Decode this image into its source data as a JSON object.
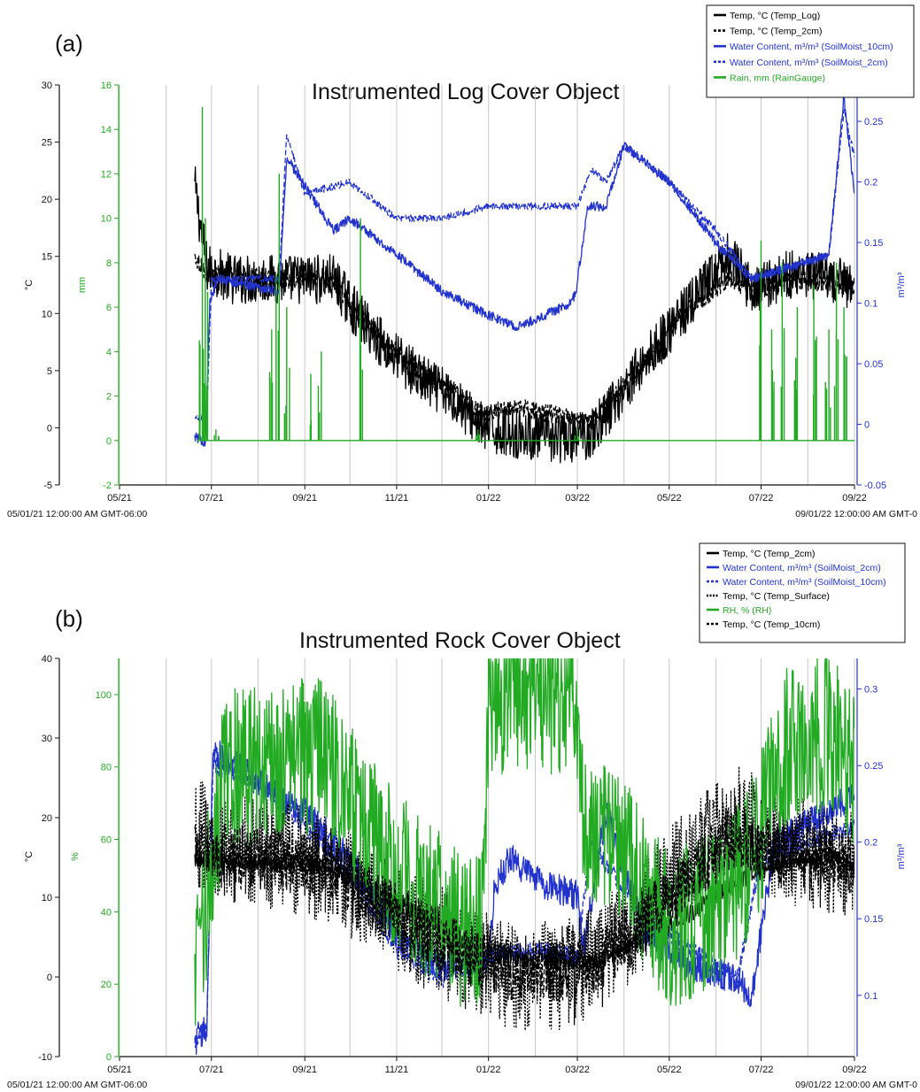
{
  "chart_data": [
    {
      "type": "line",
      "panel_label": "(a)",
      "title": "Instrumented Log Cover Object",
      "x_tick_labels": [
        "05/21",
        "07/21",
        "09/21",
        "11/21",
        "01/22",
        "03/22",
        "05/22",
        "07/22",
        "09/22"
      ],
      "x_range_labels": [
        "05/01/21 12:00:00 AM GMT-06:00",
        "09/01/22 12:00:00 AM GMT-0"
      ],
      "axes": [
        {
          "id": "temp",
          "label": "°C",
          "color": "#111111",
          "range": [
            -5,
            30
          ],
          "ticks": [
            -5,
            0,
            5,
            10,
            15,
            20,
            25,
            30
          ]
        },
        {
          "id": "rain",
          "label": "mm",
          "color": "#22aa22",
          "range": [
            -2,
            16
          ],
          "ticks": [
            -2,
            0,
            2,
            4,
            6,
            8,
            10,
            12,
            14,
            16
          ]
        },
        {
          "id": "vwc",
          "label": "m³/m³",
          "color": "#2233cc",
          "range": [
            -0.05,
            0.28
          ],
          "ticks": [
            -0.05,
            0,
            0.05,
            0.1,
            0.15,
            0.2,
            0.25
          ]
        }
      ],
      "legend_position": "top-right",
      "series": [
        {
          "name": "Temp, °C (Temp_Log)",
          "axis": "temp",
          "color": "#000000",
          "style": "solid",
          "noise": 2.2,
          "x": [
            "2021-06-20",
            "2021-06-28",
            "2021-07-15",
            "2021-08-15",
            "2021-09-20",
            "2021-10-05",
            "2021-10-25",
            "2021-11-20",
            "2021-12-10",
            "2021-12-28",
            "2022-01-20",
            "2022-02-20",
            "2022-03-10",
            "2022-04-10",
            "2022-05-10",
            "2022-06-10",
            "2022-06-25",
            "2022-07-20",
            "2022-08-15",
            "2022-09-01"
          ],
          "y": [
            21,
            14,
            13,
            13,
            13,
            10,
            7,
            4,
            2.5,
            0,
            -0.5,
            -1,
            -0.5,
            5,
            10,
            15,
            12,
            13.5,
            13,
            12.5
          ]
        },
        {
          "name": "Temp, °C (Temp_2cm)",
          "axis": "temp",
          "color": "#000000",
          "style": "dashed",
          "noise": 0.8,
          "x": [
            "2021-06-20",
            "2021-06-28",
            "2021-08-15",
            "2021-09-20",
            "2021-10-05",
            "2021-10-25",
            "2021-11-20",
            "2021-12-10",
            "2021-12-28",
            "2022-01-20",
            "2022-02-20",
            "2022-03-10",
            "2022-04-10",
            "2022-05-10",
            "2022-06-10",
            "2022-06-25",
            "2022-07-20",
            "2022-09-01"
          ],
          "y": [
            15,
            13.5,
            13,
            13,
            10,
            7.5,
            4.5,
            3,
            1.2,
            1.8,
            1,
            0.5,
            5,
            10,
            13,
            12,
            13,
            12.5
          ]
        },
        {
          "name": "Water Content, m³/m³ (SoilMoist_10cm)",
          "axis": "vwc",
          "color": "#2233cc",
          "style": "solid",
          "noise": 0.004,
          "x": [
            "2021-06-20",
            "2021-06-27",
            "2021-06-30",
            "2021-07-05",
            "2021-08-15",
            "2021-08-20",
            "2021-09-20",
            "2021-10-01",
            "2021-11-01",
            "2021-12-01",
            "2022-01-01",
            "2022-01-20",
            "2022-02-25",
            "2022-02-28",
            "2022-03-08",
            "2022-03-20",
            "2022-04-01",
            "2022-05-01",
            "2022-06-01",
            "2022-06-25",
            "2022-07-20",
            "2022-08-15",
            "2022-08-25",
            "2022-09-01"
          ],
          "y": [
            -0.01,
            -0.015,
            0.1,
            0.12,
            0.11,
            0.22,
            0.16,
            0.17,
            0.14,
            0.11,
            0.09,
            0.08,
            0.1,
            0.11,
            0.18,
            0.18,
            0.23,
            0.2,
            0.15,
            0.12,
            0.13,
            0.14,
            0.27,
            0.19
          ]
        },
        {
          "name": "Water Content, m³/m³ (SoilMoist_2cm)",
          "axis": "vwc",
          "color": "#2233cc",
          "style": "dashed",
          "noise": 0.003,
          "x": [
            "2021-06-20",
            "2021-06-28",
            "2021-07-01",
            "2021-07-10",
            "2021-08-15",
            "2021-08-20",
            "2021-09-01",
            "2021-10-01",
            "2021-11-01",
            "2021-12-01",
            "2022-01-01",
            "2022-02-01",
            "2022-03-01",
            "2022-03-10",
            "2022-03-20",
            "2022-04-01",
            "2022-05-01",
            "2022-06-01",
            "2022-06-25",
            "2022-07-20",
            "2022-08-15",
            "2022-08-25",
            "2022-09-01"
          ],
          "y": [
            0.005,
            0.005,
            0.12,
            0.12,
            0.12,
            0.24,
            0.19,
            0.2,
            0.17,
            0.17,
            0.18,
            0.18,
            0.18,
            0.21,
            0.2,
            0.23,
            0.2,
            0.16,
            0.12,
            0.13,
            0.14,
            0.26,
            0.22
          ]
        },
        {
          "name": "Rain, mm (RainGauge)",
          "axis": "rain",
          "color": "#22aa22",
          "style": "solid",
          "type": "spikes",
          "baseline": 0,
          "x": [
            "2021-06-25",
            "2021-06-27",
            "2021-07-04",
            "2021-08-10",
            "2021-08-15",
            "2021-08-20",
            "2021-09-05",
            "2021-09-12",
            "2021-10-08",
            "2021-12-25",
            "2022-03-01",
            "2022-07-01",
            "2022-07-08",
            "2022-07-15",
            "2022-07-25",
            "2022-08-05",
            "2022-08-15",
            "2022-08-20",
            "2022-08-25"
          ],
          "y": [
            15,
            10,
            0.5,
            5,
            12,
            6,
            3,
            4,
            10,
            0.5,
            0.5,
            9,
            5,
            8,
            6,
            7,
            5,
            8,
            6
          ]
        }
      ]
    },
    {
      "type": "line",
      "panel_label": "(b)",
      "title": "Instrumented Rock Cover Object",
      "x_tick_labels": [
        "05/21",
        "07/21",
        "09/21",
        "11/21",
        "01/22",
        "03/22",
        "05/22",
        "07/22",
        "09/22"
      ],
      "x_range_labels": [
        "05/01/21 12:00:00 AM GMT-06:00",
        "09/01/22 12:00:00 AM GMT-0"
      ],
      "axes": [
        {
          "id": "temp",
          "label": "°C",
          "color": "#111111",
          "range": [
            -10,
            40
          ],
          "ticks": [
            -10,
            0,
            10,
            20,
            30,
            40
          ]
        },
        {
          "id": "rh",
          "label": "%",
          "color": "#22aa22",
          "range": [
            0,
            110
          ],
          "ticks": [
            0,
            20,
            40,
            60,
            80,
            100
          ]
        },
        {
          "id": "vwc",
          "label": "m³/m³",
          "color": "#2233cc",
          "range": [
            0.06,
            0.32
          ],
          "ticks": [
            0.1,
            0.15,
            0.2,
            0.25,
            0.3
          ]
        }
      ],
      "legend_position": "top-right",
      "series": [
        {
          "name": "Temp, °C (Temp_2cm)",
          "axis": "temp",
          "color": "#000000",
          "style": "solid",
          "noise": 1.2,
          "x": [
            "2021-06-20",
            "2021-07-15",
            "2021-09-15",
            "2021-10-15",
            "2021-11-15",
            "2021-12-15",
            "2022-01-15",
            "2022-02-15",
            "2022-03-15",
            "2022-04-15",
            "2022-05-15",
            "2022-06-15",
            "2022-07-15",
            "2022-08-15",
            "2022-09-01"
          ],
          "y": [
            15,
            14.5,
            14,
            11,
            8,
            5,
            2.5,
            2,
            2,
            5,
            8,
            12,
            14.5,
            15,
            14
          ]
        },
        {
          "name": "Water Content, m³/m³ (SoilMoist_2cm)",
          "axis": "vwc",
          "color": "#2233cc",
          "style": "solid",
          "noise": 0.01,
          "x": [
            "2021-06-20",
            "2021-06-28",
            "2021-07-02",
            "2021-08-01",
            "2021-09-01",
            "2021-10-01",
            "2021-11-01",
            "2021-12-01",
            "2022-01-01",
            "2022-01-05",
            "2022-01-15",
            "2022-02-01",
            "2022-03-01",
            "2022-03-05",
            "2022-03-20",
            "2022-04-15",
            "2022-05-15",
            "2022-06-15",
            "2022-06-25",
            "2022-07-10",
            "2022-08-15",
            "2022-09-01"
          ],
          "y": [
            0.07,
            0.08,
            0.26,
            0.24,
            0.22,
            0.19,
            0.14,
            0.12,
            0.12,
            0.17,
            0.19,
            0.175,
            0.165,
            0.13,
            0.22,
            0.14,
            0.12,
            0.11,
            0.1,
            0.2,
            0.22,
            0.23
          ]
        },
        {
          "name": "Water Content, m³/m³ (SoilMoist_10cm)",
          "axis": "vwc",
          "color": "#2233cc",
          "style": "dashed",
          "noise": 0.006,
          "x": [
            "2021-06-20",
            "2021-06-28",
            "2021-07-02",
            "2021-08-01",
            "2021-09-01",
            "2021-10-01",
            "2021-11-01",
            "2021-12-01",
            "2022-01-01",
            "2022-02-01",
            "2022-03-01",
            "2022-03-10",
            "2022-04-15",
            "2022-05-15",
            "2022-06-15",
            "2022-07-01",
            "2022-08-01",
            "2022-09-01"
          ],
          "y": [
            0.07,
            0.08,
            0.25,
            0.24,
            0.21,
            0.18,
            0.13,
            0.11,
            0.125,
            0.13,
            0.125,
            0.2,
            0.15,
            0.13,
            0.11,
            0.19,
            0.2,
            0.21
          ]
        },
        {
          "name": "Temp, °C (Temp_Surface)",
          "axis": "temp",
          "color": "#000000",
          "style": "dotted",
          "noise": 7,
          "x": [
            "2021-06-20",
            "2021-07-15",
            "2021-09-15",
            "2021-10-15",
            "2021-11-15",
            "2021-12-15",
            "2022-01-15",
            "2022-02-15",
            "2022-03-15",
            "2022-04-15",
            "2022-05-15",
            "2022-06-15",
            "2022-07-15",
            "2022-08-15",
            "2022-09-01"
          ],
          "y": [
            18,
            16,
            14,
            10,
            6,
            3,
            0,
            0,
            2,
            8,
            15,
            20,
            16,
            15,
            14
          ]
        },
        {
          "name": "RH, % (RH)",
          "axis": "rh",
          "color": "#22aa22",
          "style": "solid",
          "noise": 22,
          "x": [
            "2021-06-20",
            "2021-07-10",
            "2021-08-15",
            "2021-09-15",
            "2021-10-15",
            "2021-11-15",
            "2021-12-15",
            "2021-12-28",
            "2022-01-01",
            "2022-02-28",
            "2022-03-05",
            "2022-04-01",
            "2022-05-01",
            "2022-06-01",
            "2022-06-25",
            "2022-07-15",
            "2022-08-15",
            "2022-09-01"
          ],
          "y": [
            20,
            80,
            80,
            85,
            60,
            45,
            35,
            35,
            100,
            100,
            65,
            55,
            35,
            40,
            55,
            85,
            90,
            80
          ]
        },
        {
          "name": "Temp, °C (Temp_10cm)",
          "axis": "temp",
          "color": "#000000",
          "style": "dashed",
          "noise": 4,
          "x": [
            "2021-06-20",
            "2021-07-15",
            "2021-09-15",
            "2021-10-15",
            "2021-11-15",
            "2021-12-15",
            "2022-01-15",
            "2022-02-15",
            "2022-03-15",
            "2022-04-15",
            "2022-05-15",
            "2022-06-15",
            "2022-07-15",
            "2022-08-15",
            "2022-09-01"
          ],
          "y": [
            17,
            15,
            14,
            10,
            6,
            3,
            1,
            0.5,
            2,
            7,
            13,
            18,
            15,
            15,
            14
          ]
        }
      ]
    }
  ]
}
